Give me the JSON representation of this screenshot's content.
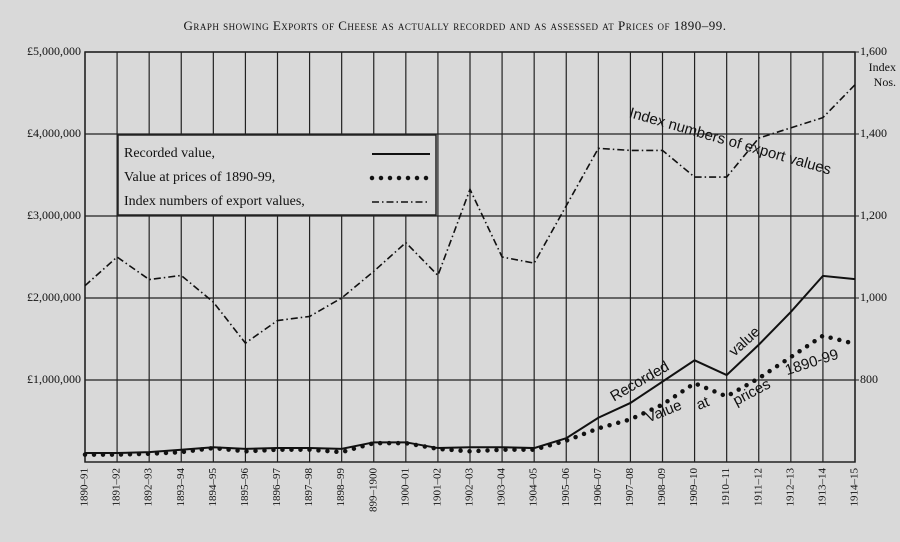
{
  "chart_data": {
    "type": "line",
    "title": "Graph showing Exports of Cheese as actually recorded and as assessed at Prices of 1890–99.",
    "categories": [
      "1890–91",
      "1891–92",
      "1892–93",
      "1893–94",
      "1894–95",
      "1895–96",
      "1896–97",
      "1897–98",
      "1898–99",
      "899–1900",
      "1900–01",
      "1901–02",
      "1902–03",
      "1903–04",
      "1904–05",
      "1905–06",
      "1906–07",
      "1907–08",
      "1908–09",
      "1909–10",
      "1910–11",
      "1911–12",
      "1912–13",
      "1913–14",
      "1914–15"
    ],
    "ylim": [
      0,
      5000000
    ],
    "yticks": [
      {
        "value": 1000000,
        "label": "£1,000,000"
      },
      {
        "value": 2000000,
        "label": "£2,000,000"
      },
      {
        "value": 3000000,
        "label": "£3,000,000"
      },
      {
        "value": 4000000,
        "label": "£4,000,000"
      },
      {
        "value": 5000000,
        "label": "£5,000,000"
      }
    ],
    "y2lim": [
      600,
      1600
    ],
    "y2ticks": [
      800,
      {
        "value": 1000,
        "label": "1,000"
      },
      {
        "value": 1200,
        "label": "1,200"
      },
      {
        "value": 1400,
        "label": "1,400"
      },
      {
        "value": 1600,
        "label": "1,600"
      }
    ],
    "y2_label": [
      "Index",
      "Nos."
    ],
    "grid": true,
    "series": [
      {
        "name": "Recorded value,",
        "color": "#111",
        "style": "solid",
        "values": [
          110000,
          110000,
          120000,
          150000,
          180000,
          160000,
          170000,
          170000,
          160000,
          240000,
          240000,
          170000,
          180000,
          180000,
          170000,
          290000,
          540000,
          720000,
          980000,
          1240000,
          1060000,
          1430000,
          1830000,
          2270000,
          2230000
        ]
      },
      {
        "name": "Value at prices of 1890-99,",
        "color": "#111",
        "style": "dotted",
        "values": [
          90000,
          90000,
          100000,
          120000,
          170000,
          130000,
          150000,
          150000,
          120000,
          230000,
          230000,
          160000,
          130000,
          150000,
          150000,
          260000,
          410000,
          520000,
          700000,
          960000,
          800000,
          1020000,
          1280000,
          1540000,
          1440000
        ]
      },
      {
        "name": "Index numbers of export values,",
        "color": "#111",
        "style": "dashdot",
        "axis": "y2",
        "values": [
          1030,
          1100,
          1045,
          1055,
          990,
          890,
          945,
          955,
          1000,
          1065,
          1135,
          1055,
          1265,
          1100,
          1085,
          1225,
          1365,
          1360,
          1360,
          1295,
          1295,
          1390,
          1415,
          1440,
          1520
        ]
      }
    ],
    "annotations": [
      "Recorded",
      "value",
      "Value",
      "at",
      "prices",
      "1890-99",
      "Index numbers of export values"
    ]
  }
}
